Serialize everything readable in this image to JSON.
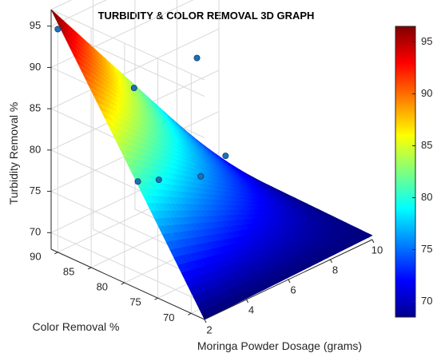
{
  "chart_data": {
    "type": "surface3d",
    "title": "TURBIDITY & COLOR REMOVAL 3D GRAPH",
    "xlabel": "Moringa Powder Dosage (grams)",
    "ylabel": "Color Removal %",
    "zlabel": "Turbidity Removal %",
    "xlim": [
      2,
      10
    ],
    "ylim": [
      68,
      91
    ],
    "zlim": [
      68,
      97
    ],
    "xticks": [
      "2",
      "4",
      "6",
      "8",
      "10"
    ],
    "yticks": [
      "70",
      "75",
      "80",
      "85",
      "90"
    ],
    "zticks": [
      "70",
      "75",
      "80",
      "85",
      "90",
      "95"
    ],
    "colorbar": {
      "range": [
        68.5,
        96.5
      ],
      "ticks": [
        "70",
        "75",
        "80",
        "85",
        "90",
        "95"
      ],
      "colormap": "jet"
    },
    "grid": true,
    "points": [
      {
        "x": 2,
        "y": 90,
        "z": 95
      },
      {
        "x": 2,
        "y": 78,
        "z": 81
      },
      {
        "x": 3,
        "y": 78,
        "z": 80
      },
      {
        "x": 5,
        "y": 88,
        "z": 85
      },
      {
        "x": 5,
        "y": 78,
        "z": 78
      },
      {
        "x": 8,
        "y": 88,
        "z": 85
      },
      {
        "x": 10,
        "y": 90,
        "z": 70
      }
    ]
  }
}
